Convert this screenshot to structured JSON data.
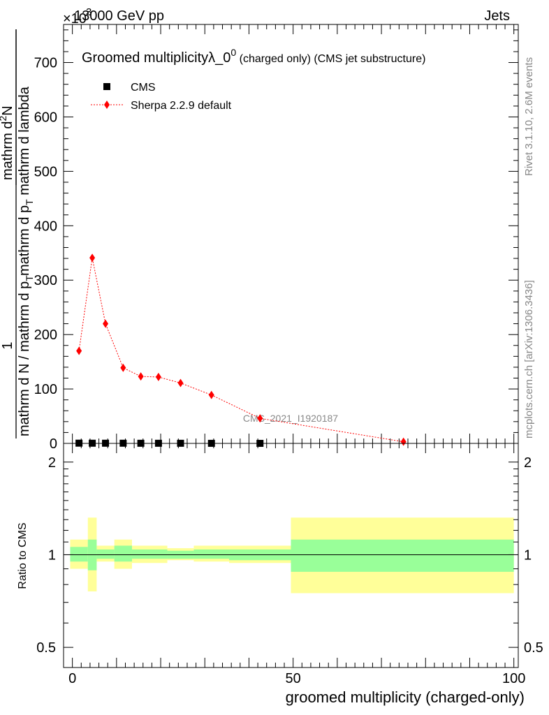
{
  "header": {
    "energy": "13000 GeV pp",
    "process": "Jets",
    "exponent_prefix": "×10",
    "exponent_value": "3"
  },
  "side_text": {
    "rivet": "Rivet 3.1.10,  2.6M events",
    "mcplots": "mcplots.cern.ch [arXiv:1306.3436]"
  },
  "chart_data": [
    {
      "type": "scatter",
      "title": "Groomed multiplicity",
      "title_lambda": "λ_0",
      "title_sup": "0",
      "title_suffix": " (charged only) (CMS jet substructure)",
      "watermark": "CMS_2021_I1920187",
      "ylabel_numerator": "1",
      "ylabel_denominator": "mathrm d N / mathrm d p",
      "ylabel_denominator_sub": "T",
      "ylabel_rhs_numerator": "mathrm d",
      "ylabel_rhs_numerator_sup": "2",
      "ylabel_rhs_numerator_tail": "N",
      "ylabel_rhs_denominator": "mathrm d p",
      "ylabel_rhs_denominator_sub": "T",
      "ylabel_rhs_denominator_tail": " mathrm d lambda",
      "xlim": [
        -2,
        101
      ],
      "ylim": [
        0,
        770
      ],
      "yticks": [
        0,
        100,
        200,
        300,
        400,
        500,
        600,
        700
      ],
      "legend": [
        {
          "label": "CMS",
          "color": "#000000",
          "marker": "square"
        },
        {
          "label": "Sherpa 2.2.9 default",
          "color": "#ff0000",
          "marker": "diamond"
        }
      ],
      "series": [
        {
          "name": "CMS",
          "x": [
            1.5,
            4.5,
            7.5,
            11.5,
            15.5,
            19.5,
            24.5,
            31.5,
            42.5
          ],
          "y": [
            0.4,
            0.3,
            0.3,
            0.3,
            0.2,
            0.2,
            0.2,
            0.1,
            0.05
          ]
        },
        {
          "name": "Sherpa 2.2.9 default",
          "x": [
            1.5,
            4.5,
            7.5,
            11.5,
            15.5,
            19.5,
            24.5,
            31.5,
            42.5,
            75
          ],
          "y": [
            170,
            341,
            220,
            139,
            123,
            122,
            111,
            89,
            46,
            3
          ]
        }
      ]
    },
    {
      "type": "area",
      "ylabel": "Ratio to CMS",
      "xlabel": "groomed multiplicity (charged-only)",
      "xlim": [
        -2,
        101
      ],
      "ylim": [
        0.43,
        2.3
      ],
      "log_y": true,
      "yticks": [
        0.5,
        1,
        2
      ],
      "xticks": [
        0,
        50,
        100
      ],
      "reference_line": 1,
      "bins": [
        {
          "lo": -0.5,
          "hi": 3.5,
          "inner_lo": 0.95,
          "inner_hi": 1.06,
          "outer_lo": 0.9,
          "outer_hi": 1.12
        },
        {
          "lo": 3.5,
          "hi": 5.5,
          "inner_lo": 0.89,
          "inner_hi": 1.12,
          "outer_lo": 0.76,
          "outer_hi": 1.32
        },
        {
          "lo": 5.5,
          "hi": 9.5,
          "inner_lo": 0.97,
          "inner_hi": 1.04,
          "outer_lo": 0.95,
          "outer_hi": 1.07
        },
        {
          "lo": 9.5,
          "hi": 13.5,
          "inner_lo": 0.95,
          "inner_hi": 1.07,
          "outer_lo": 0.9,
          "outer_hi": 1.12
        },
        {
          "lo": 13.5,
          "hi": 21.5,
          "inner_lo": 0.97,
          "inner_hi": 1.04,
          "outer_lo": 0.94,
          "outer_hi": 1.07
        },
        {
          "lo": 21.5,
          "hi": 27.5,
          "inner_lo": 0.97,
          "inner_hi": 1.03,
          "outer_lo": 0.96,
          "outer_hi": 1.05
        },
        {
          "lo": 27.5,
          "hi": 35.5,
          "inner_lo": 0.97,
          "inner_hi": 1.04,
          "outer_lo": 0.95,
          "outer_hi": 1.07
        },
        {
          "lo": 35.5,
          "hi": 49.5,
          "inner_lo": 0.96,
          "inner_hi": 1.04,
          "outer_lo": 0.94,
          "outer_hi": 1.07
        },
        {
          "lo": 49.5,
          "hi": 100,
          "inner_lo": 0.88,
          "inner_hi": 1.12,
          "outer_lo": 0.75,
          "outer_hi": 1.32
        }
      ],
      "colors": {
        "inner": "#99ff99",
        "outer": "#ffff99"
      }
    }
  ]
}
